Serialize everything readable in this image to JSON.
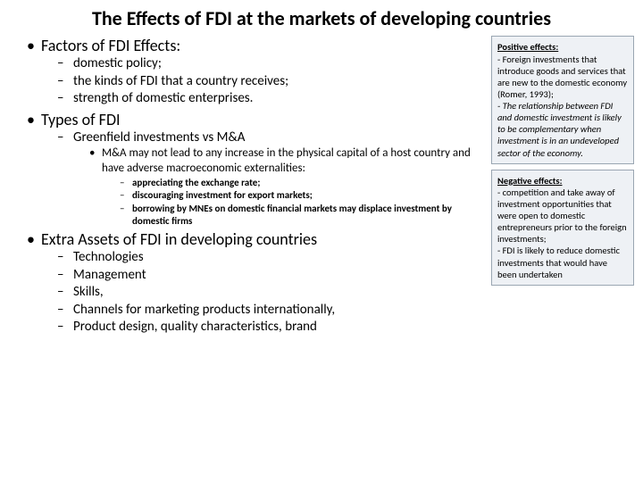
{
  "title": "The Effects of FDI at the markets of developing countries",
  "outline": [
    {
      "text": "Factors of FDI Effects:",
      "children": [
        {
          "text": "domestic policy;"
        },
        {
          "text": "the kinds of FDI that a country receives;"
        },
        {
          "text": "strength of domestic enterprises."
        }
      ]
    },
    {
      "text": "Types of FDI",
      "children": [
        {
          "text": "Greenfield investments vs M&A",
          "children": [
            {
              "text": "M&A may not lead to any increase in the physical capital of a host country and have adverse macroeconomic externalities:",
              "children": [
                {
                  "text": "appreciating the exchange rate;"
                },
                {
                  "text": "discouraging investment for export markets;"
                },
                {
                  "text": "borrowing by MNEs on domestic financial markets may displace investment by domestic firms"
                }
              ]
            }
          ]
        }
      ]
    },
    {
      "text": "Extra Assets of FDI in developing countries",
      "children": [
        {
          "text": "Technologies"
        },
        {
          "text": "Management"
        },
        {
          "text": "Skills,"
        },
        {
          "text": "Channels for marketing products internationally,"
        },
        {
          "text": "Product design, quality characteristics, brand"
        }
      ]
    }
  ],
  "positive": {
    "heading": "Positive effects:",
    "p1": "- Foreign investments that introduce goods and services that are new to the domestic economy (Romer, 1993);",
    "p2": "- The relationship between FDI and domestic investment\nis likely to be complementary when investment is in an undeveloped sector of the economy."
  },
  "negative": {
    "heading": "Negative effects:",
    "p1": " - competition and  take away of investment opportunities that were open to domestic entrepreneurs prior to the foreign investments;",
    "p2": "- FDI is likely to reduce domestic investments that would have been undertaken"
  },
  "style": {
    "bg": "#ffffff",
    "box_bg": "#eef1f5",
    "box_border": "#9aa6b2",
    "title_fontsize": 22,
    "lvl_fontsizes": [
      18,
      15,
      13,
      11
    ]
  }
}
